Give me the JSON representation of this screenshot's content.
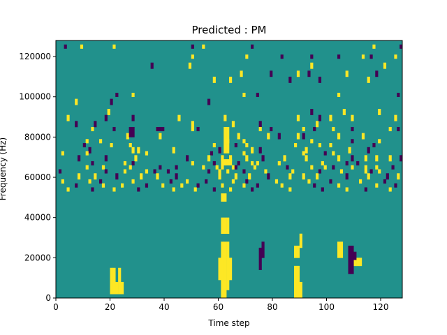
{
  "chart_data": {
    "type": "heatmap",
    "title": "Predicted : PM",
    "xlabel": "Time step",
    "ylabel": "Frequency (Hz)",
    "xlim": [
      0,
      128
    ],
    "ylim": [
      0,
      128000
    ],
    "x_ticks": [
      0,
      20,
      40,
      60,
      80,
      100,
      120
    ],
    "y_ticks": [
      0,
      20000,
      40000,
      60000,
      80000,
      100000,
      120000
    ],
    "n_time_steps": 128,
    "n_freq_bins": 128,
    "colormap": "viridis",
    "background_value": 0,
    "value_range": [
      -1,
      1
    ],
    "colors": {
      "low": "#440154",
      "mid": "#21918c",
      "high": "#fde725"
    },
    "grid": false,
    "legend": "none",
    "cells": [
      [
        3,
        124,
        126,
        -1
      ],
      [
        9,
        124,
        126,
        1
      ],
      [
        21,
        124,
        126,
        1
      ],
      [
        50,
        124,
        126,
        -1
      ],
      [
        54,
        124,
        126,
        1
      ],
      [
        72,
        124,
        126,
        -1
      ],
      [
        117,
        124,
        126,
        1
      ],
      [
        127,
        124,
        126,
        -1
      ],
      [
        50,
        119,
        121,
        1
      ],
      [
        70,
        119,
        121,
        1
      ],
      [
        83,
        119,
        121,
        -1
      ],
      [
        94,
        119,
        121,
        -1
      ],
      [
        104,
        119,
        121,
        -1
      ],
      [
        113,
        119,
        121,
        1
      ],
      [
        116,
        119,
        121,
        -1
      ],
      [
        125,
        119,
        121,
        1
      ],
      [
        35,
        114,
        117,
        -1
      ],
      [
        49,
        114,
        117,
        1
      ],
      [
        94,
        114,
        117,
        1
      ],
      [
        121,
        114,
        117,
        1
      ],
      [
        68,
        110,
        113,
        1
      ],
      [
        79,
        110,
        113,
        -1
      ],
      [
        89,
        110,
        113,
        1
      ],
      [
        93,
        110,
        113,
        -1
      ],
      [
        107,
        110,
        113,
        1
      ],
      [
        118,
        110,
        113,
        -1
      ],
      [
        58,
        107,
        110,
        1
      ],
      [
        64,
        107,
        110,
        1
      ],
      [
        86,
        107,
        110,
        -1
      ],
      [
        97,
        107,
        110,
        -1
      ],
      [
        115,
        107,
        110,
        1
      ],
      [
        22,
        100,
        102,
        -1
      ],
      [
        28,
        100,
        102,
        1
      ],
      [
        69,
        100,
        102,
        1
      ],
      [
        74,
        100,
        102,
        -1
      ],
      [
        104,
        100,
        102,
        1
      ],
      [
        126,
        100,
        102,
        -1
      ],
      [
        7,
        96,
        99,
        1
      ],
      [
        20,
        96,
        99,
        -1
      ],
      [
        56,
        96,
        99,
        -1
      ],
      [
        19,
        91,
        94,
        1
      ],
      [
        94,
        91,
        94,
        -1
      ],
      [
        106,
        91,
        94,
        1
      ],
      [
        119,
        91,
        94,
        1
      ],
      [
        4,
        88,
        91,
        1
      ],
      [
        18,
        88,
        91,
        -1
      ],
      [
        28,
        88,
        91,
        -1
      ],
      [
        45,
        88,
        91,
        1
      ],
      [
        62,
        88,
        91,
        1
      ],
      [
        89,
        88,
        91,
        1
      ],
      [
        97,
        88,
        91,
        -1
      ],
      [
        101,
        88,
        91,
        1
      ],
      [
        109,
        88,
        91,
        1
      ],
      [
        125,
        88,
        91,
        1
      ],
      [
        7,
        85,
        88,
        -1
      ],
      [
        14,
        85,
        88,
        -1
      ],
      [
        50,
        85,
        88,
        1
      ],
      [
        65,
        85,
        88,
        1
      ],
      [
        75,
        85,
        88,
        -1
      ],
      [
        96,
        85,
        88,
        1
      ],
      [
        13,
        83,
        85,
        1
      ],
      [
        21,
        83,
        85,
        -1
      ],
      [
        37,
        83,
        85,
        1
      ],
      [
        50,
        83,
        85,
        1
      ],
      [
        52,
        83,
        85,
        -1
      ],
      [
        75,
        83,
        85,
        1
      ],
      [
        79,
        83,
        85,
        -1
      ],
      [
        91,
        83,
        85,
        1
      ],
      [
        95,
        83,
        85,
        -1
      ],
      [
        102,
        83,
        85,
        1
      ],
      [
        109,
        83,
        85,
        -1
      ],
      [
        123,
        83,
        85,
        1
      ],
      [
        126,
        83,
        85,
        -1
      ],
      [
        26,
        79,
        82,
        1
      ],
      [
        38,
        79,
        82,
        1
      ],
      [
        67,
        79,
        82,
        1
      ],
      [
        78,
        79,
        82,
        1
      ],
      [
        82,
        79,
        82,
        -1
      ],
      [
        89,
        79,
        82,
        1
      ],
      [
        91,
        79,
        82,
        -1
      ],
      [
        104,
        79,
        82,
        1
      ],
      [
        113,
        79,
        82,
        1
      ],
      [
        11,
        77,
        79,
        1
      ],
      [
        16,
        77,
        79,
        1
      ],
      [
        63,
        77,
        79,
        1
      ],
      [
        69,
        77,
        79,
        1
      ],
      [
        94,
        77,
        79,
        1
      ],
      [
        109,
        77,
        79,
        -1
      ],
      [
        119,
        77,
        79,
        1
      ],
      [
        10,
        75,
        77,
        -1
      ],
      [
        20,
        75,
        77,
        1
      ],
      [
        27,
        75,
        77,
        1
      ],
      [
        58,
        75,
        77,
        1
      ],
      [
        66,
        75,
        77,
        -1
      ],
      [
        70,
        75,
        77,
        1
      ],
      [
        88,
        75,
        77,
        1
      ],
      [
        97,
        75,
        77,
        1
      ],
      [
        101,
        75,
        77,
        1
      ],
      [
        117,
        75,
        77,
        -1
      ],
      [
        12,
        72,
        75,
        -1
      ],
      [
        28,
        72,
        75,
        1
      ],
      [
        30,
        72,
        75,
        1
      ],
      [
        43,
        72,
        75,
        1
      ],
      [
        60,
        72,
        75,
        -1
      ],
      [
        72,
        72,
        75,
        1
      ],
      [
        75,
        72,
        75,
        -1
      ],
      [
        92,
        72,
        75,
        1
      ],
      [
        108,
        72,
        75,
        1
      ],
      [
        115,
        72,
        75,
        -1
      ],
      [
        2,
        71,
        73,
        1
      ],
      [
        11,
        71,
        73,
        1
      ],
      [
        33,
        71,
        73,
        1
      ],
      [
        57,
        71,
        73,
        -1
      ],
      [
        69,
        71,
        73,
        1
      ],
      [
        91,
        71,
        73,
        1
      ],
      [
        99,
        71,
        73,
        -1
      ],
      [
        102,
        71,
        73,
        1
      ],
      [
        8,
        68,
        71,
        -1
      ],
      [
        18,
        68,
        71,
        -1
      ],
      [
        29,
        68,
        71,
        1
      ],
      [
        48,
        68,
        71,
        -1
      ],
      [
        56,
        68,
        71,
        1
      ],
      [
        61,
        68,
        71,
        1
      ],
      [
        64,
        68,
        71,
        1
      ],
      [
        70,
        68,
        71,
        1
      ],
      [
        76,
        68,
        71,
        -1
      ],
      [
        84,
        68,
        71,
        1
      ],
      [
        92,
        68,
        71,
        1
      ],
      [
        104,
        68,
        71,
        1
      ],
      [
        109,
        68,
        71,
        -1
      ],
      [
        114,
        68,
        71,
        1
      ],
      [
        118,
        68,
        71,
        1
      ],
      [
        123,
        68,
        71,
        1
      ],
      [
        127,
        68,
        71,
        -1
      ],
      [
        13,
        66,
        68,
        -1
      ],
      [
        25,
        66,
        68,
        1
      ],
      [
        28,
        66,
        68,
        -1
      ],
      [
        50,
        66,
        68,
        1
      ],
      [
        58,
        66,
        68,
        -1
      ],
      [
        62,
        66,
        68,
        1
      ],
      [
        67,
        66,
        68,
        -1
      ],
      [
        72,
        66,
        68,
        1
      ],
      [
        74,
        66,
        68,
        1
      ],
      [
        82,
        66,
        68,
        1
      ],
      [
        98,
        66,
        68,
        1
      ],
      [
        107,
        66,
        68,
        -1
      ],
      [
        111,
        66,
        68,
        -1
      ],
      [
        11,
        64,
        66,
        1
      ],
      [
        17,
        64,
        66,
        1
      ],
      [
        27,
        64,
        66,
        1
      ],
      [
        38,
        64,
        66,
        -1
      ],
      [
        44,
        64,
        66,
        -1
      ],
      [
        54,
        64,
        66,
        1
      ],
      [
        59,
        64,
        66,
        1
      ],
      [
        61,
        64,
        66,
        1
      ],
      [
        65,
        64,
        66,
        1
      ],
      [
        66,
        64,
        66,
        -1
      ],
      [
        73,
        64,
        66,
        1
      ],
      [
        85,
        64,
        66,
        -1
      ],
      [
        94,
        64,
        66,
        1
      ],
      [
        99,
        64,
        66,
        1
      ],
      [
        102,
        64,
        66,
        -1
      ],
      [
        109,
        64,
        66,
        1
      ],
      [
        114,
        64,
        66,
        1
      ],
      [
        118,
        64,
        66,
        1
      ],
      [
        124,
        64,
        66,
        -1
      ],
      [
        1,
        62,
        64,
        -1
      ],
      [
        18,
        62,
        64,
        -1
      ],
      [
        25,
        62,
        64,
        1
      ],
      [
        33,
        62,
        64,
        1
      ],
      [
        36,
        62,
        64,
        -1
      ],
      [
        41,
        62,
        64,
        -1
      ],
      [
        56,
        62,
        64,
        -1
      ],
      [
        60,
        62,
        64,
        1
      ],
      [
        63,
        62,
        64,
        1
      ],
      [
        69,
        62,
        64,
        -1
      ],
      [
        77,
        62,
        64,
        1
      ],
      [
        87,
        62,
        64,
        1
      ],
      [
        97,
        62,
        64,
        -1
      ],
      [
        105,
        62,
        64,
        1
      ],
      [
        114,
        62,
        64,
        1
      ],
      [
        116,
        62,
        64,
        -1
      ],
      [
        119,
        62,
        64,
        1
      ],
      [
        8,
        59,
        62,
        1
      ],
      [
        14,
        59,
        62,
        1
      ],
      [
        22,
        59,
        62,
        -1
      ],
      [
        31,
        59,
        62,
        1
      ],
      [
        37,
        59,
        62,
        1
      ],
      [
        44,
        59,
        62,
        -1
      ],
      [
        60,
        59,
        62,
        1
      ],
      [
        66,
        59,
        62,
        1
      ],
      [
        71,
        59,
        62,
        1
      ],
      [
        78,
        59,
        62,
        -1
      ],
      [
        86,
        59,
        62,
        1
      ],
      [
        91,
        59,
        62,
        1
      ],
      [
        96,
        59,
        62,
        1
      ],
      [
        107,
        59,
        62,
        -1
      ],
      [
        115,
        59,
        62,
        1
      ],
      [
        122,
        59,
        62,
        -1
      ],
      [
        126,
        59,
        62,
        1
      ],
      [
        2,
        57,
        59,
        1
      ],
      [
        12,
        57,
        59,
        1
      ],
      [
        16,
        57,
        59,
        -1
      ],
      [
        28,
        57,
        59,
        1
      ],
      [
        42,
        57,
        59,
        -1
      ],
      [
        48,
        57,
        59,
        1
      ],
      [
        55,
        57,
        59,
        -1
      ],
      [
        65,
        57,
        59,
        1
      ],
      [
        70,
        57,
        59,
        -1
      ],
      [
        81,
        57,
        59,
        1
      ],
      [
        93,
        57,
        59,
        1
      ],
      [
        101,
        57,
        59,
        -1
      ],
      [
        112,
        57,
        59,
        1
      ],
      [
        121,
        57,
        59,
        -1
      ],
      [
        7,
        55,
        57,
        -1
      ],
      [
        17,
        55,
        57,
        1
      ],
      [
        24,
        55,
        57,
        1
      ],
      [
        33,
        55,
        57,
        -1
      ],
      [
        39,
        55,
        57,
        1
      ],
      [
        46,
        55,
        57,
        1
      ],
      [
        52,
        55,
        57,
        -1
      ],
      [
        61,
        55,
        57,
        1
      ],
      [
        69,
        55,
        57,
        1
      ],
      [
        74,
        55,
        57,
        -1
      ],
      [
        83,
        55,
        57,
        1
      ],
      [
        95,
        55,
        57,
        -1
      ],
      [
        104,
        55,
        57,
        1
      ],
      [
        118,
        55,
        57,
        1
      ],
      [
        125,
        55,
        57,
        -1
      ],
      [
        4,
        53,
        55,
        1
      ],
      [
        13,
        53,
        55,
        -1
      ],
      [
        21,
        53,
        55,
        1
      ],
      [
        30,
        53,
        55,
        -1
      ],
      [
        43,
        53,
        55,
        1
      ],
      [
        51,
        53,
        55,
        1
      ],
      [
        58,
        53,
        55,
        -1
      ],
      [
        64,
        53,
        55,
        1
      ],
      [
        72,
        53,
        55,
        -1
      ],
      [
        86,
        53,
        55,
        1
      ],
      [
        98,
        53,
        55,
        -1
      ],
      [
        107,
        53,
        55,
        1
      ],
      [
        114,
        53,
        55,
        -1
      ],
      [
        123,
        53,
        55,
        1
      ]
    ],
    "bands": [
      [
        20,
        2,
        8,
        1
      ],
      [
        21,
        2,
        8,
        1
      ],
      [
        22,
        2,
        8,
        1
      ],
      [
        23,
        2,
        8,
        1
      ],
      [
        24,
        2,
        8,
        1
      ],
      [
        20,
        8,
        15,
        1
      ],
      [
        21,
        8,
        15,
        1
      ],
      [
        23,
        8,
        15,
        1
      ],
      [
        61,
        0,
        4,
        1
      ],
      [
        62,
        0,
        4,
        1
      ],
      [
        61,
        4,
        9,
        1
      ],
      [
        62,
        4,
        9,
        1
      ],
      [
        63,
        4,
        9,
        1
      ],
      [
        60,
        9,
        20,
        1
      ],
      [
        61,
        9,
        20,
        1
      ],
      [
        62,
        9,
        20,
        1
      ],
      [
        63,
        9,
        20,
        1
      ],
      [
        64,
        9,
        20,
        1
      ],
      [
        61,
        20,
        28,
        1
      ],
      [
        62,
        20,
        28,
        1
      ],
      [
        63,
        20,
        28,
        1
      ],
      [
        61,
        32,
        40,
        1
      ],
      [
        62,
        32,
        40,
        1
      ],
      [
        63,
        32,
        40,
        1
      ],
      [
        61,
        48,
        52,
        1
      ],
      [
        62,
        48,
        52,
        1
      ],
      [
        61,
        66,
        69,
        1
      ],
      [
        62,
        66,
        69,
        1
      ],
      [
        63,
        66,
        69,
        1
      ],
      [
        64,
        66,
        69,
        1
      ],
      [
        62,
        72,
        85,
        1
      ],
      [
        63,
        72,
        85,
        1
      ],
      [
        88,
        0,
        8,
        1
      ],
      [
        89,
        0,
        8,
        1
      ],
      [
        90,
        0,
        8,
        1
      ],
      [
        88,
        8,
        16,
        1
      ],
      [
        89,
        8,
        16,
        1
      ],
      [
        88,
        20,
        26,
        1
      ],
      [
        89,
        20,
        26,
        1
      ],
      [
        90,
        25,
        32,
        1
      ],
      [
        104,
        20,
        28,
        1
      ],
      [
        105,
        20,
        28,
        1
      ],
      [
        110,
        16,
        20,
        1
      ],
      [
        111,
        16,
        20,
        1
      ],
      [
        112,
        16,
        20,
        1
      ],
      [
        75,
        14,
        25,
        -1
      ],
      [
        76,
        20,
        28,
        -1
      ],
      [
        108,
        12,
        26,
        -1
      ],
      [
        109,
        12,
        26,
        -1
      ],
      [
        110,
        19,
        23,
        -1
      ],
      [
        37,
        83,
        85,
        -1
      ],
      [
        38,
        83,
        85,
        -1
      ],
      [
        39,
        83,
        85,
        -1
      ],
      [
        27,
        80,
        85,
        -1
      ],
      [
        28,
        80,
        85,
        -1
      ]
    ]
  }
}
